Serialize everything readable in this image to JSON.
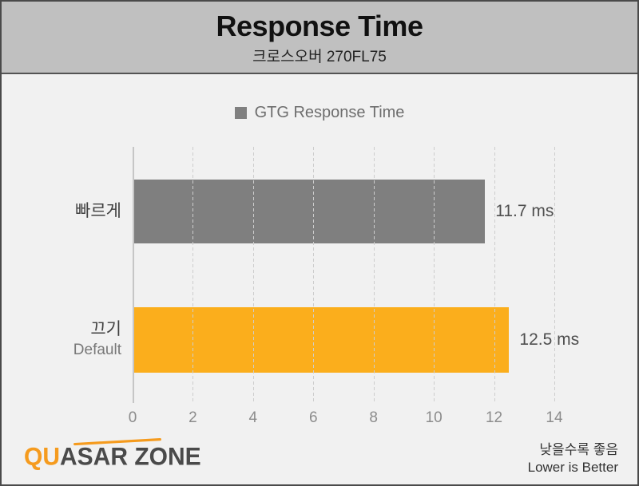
{
  "header": {
    "title": "Response Time",
    "subtitle": "크로스오버 270FL75"
  },
  "legend": {
    "label": "GTG Response Time",
    "swatch_color": "#808080"
  },
  "chart_data": {
    "type": "bar",
    "orientation": "horizontal",
    "title": "Response Time",
    "subtitle": "크로스오버 270FL75",
    "series_name": "GTG Response Time",
    "categories": [
      "빠르게",
      "끄기"
    ],
    "category_sublabels": [
      "",
      "Default"
    ],
    "values": [
      11.7,
      12.5
    ],
    "value_labels": [
      "11.7 ms",
      "12.5 ms"
    ],
    "bar_colors": [
      "#7f7f7f",
      "#fbae1c"
    ],
    "unit": "ms",
    "xlim": [
      0,
      14
    ],
    "x_ticks": [
      0,
      2,
      4,
      6,
      8,
      10,
      12,
      14
    ],
    "grid": "dashed-vertical",
    "legend_position": "top-center",
    "note": "lower is better"
  },
  "footer": {
    "logo_part_orange": "QU",
    "logo_part_dark": "ASAR ZONE",
    "note_ko": "낮을수록 좋음",
    "note_en": "Lower is Better"
  },
  "colors": {
    "frame_border": "#4a4a4a",
    "header_bg": "#c0c0c0",
    "body_bg": "#f1f1f1",
    "bar_gray": "#7f7f7f",
    "bar_orange": "#fbae1c",
    "logo_orange": "#f59b1e"
  }
}
